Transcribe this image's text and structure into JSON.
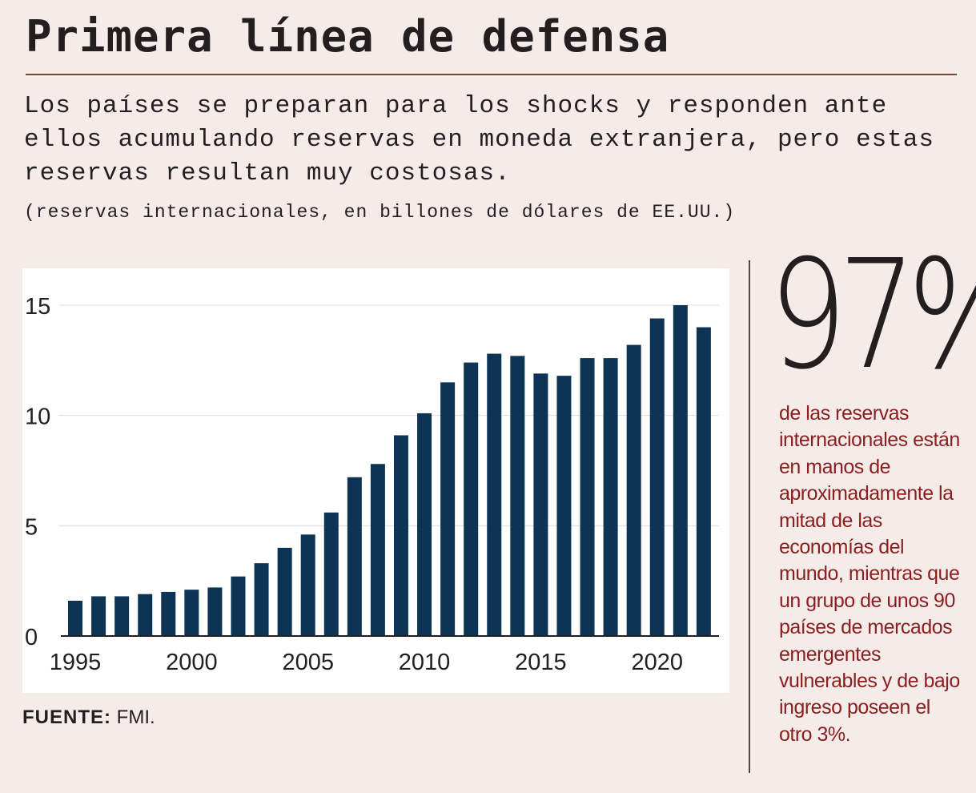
{
  "header": {
    "title": "Primera línea de defensa",
    "subtitle": "Los países se preparan para los shocks y responden ante ellos acumulando reservas en moneda extranjera, pero estas reservas resultan muy costosas.",
    "units": "(reservas internacionales, en billones de dólares de EE.UU.)"
  },
  "source": {
    "label": "FUENTE:",
    "text": "FMI."
  },
  "callout": {
    "stat": "97%",
    "text": "de las reservas internacionales están en manos de aproximadamente la mitad de las economías del mundo, mientras que un grupo de unos 90 países de mercados emergentes vulnerables y de bajo ingreso poseen el otro 3%."
  },
  "colors": {
    "bar": "#0e3455",
    "background": "#f5ecea",
    "accent": "#8b1e1e"
  },
  "chart_data": {
    "type": "bar",
    "title": "",
    "xlabel": "",
    "ylabel": "",
    "ylim": [
      0,
      15
    ],
    "yticks": [
      0,
      5,
      10,
      15
    ],
    "xticks": [
      "1995",
      "2000",
      "2005",
      "2010",
      "2015",
      "2020"
    ],
    "grid": true,
    "categories": [
      1995,
      1996,
      1997,
      1998,
      1999,
      2000,
      2001,
      2002,
      2003,
      2004,
      2005,
      2006,
      2007,
      2008,
      2009,
      2010,
      2011,
      2012,
      2013,
      2014,
      2015,
      2016,
      2017,
      2018,
      2019,
      2020,
      2021,
      2022
    ],
    "values": [
      1.6,
      1.8,
      1.8,
      1.9,
      2.0,
      2.1,
      2.2,
      2.7,
      3.3,
      4.0,
      4.6,
      5.6,
      7.2,
      7.8,
      9.1,
      10.1,
      11.5,
      12.4,
      12.8,
      12.7,
      11.9,
      11.8,
      12.6,
      12.6,
      13.2,
      14.4,
      15.0,
      14.0
    ]
  }
}
